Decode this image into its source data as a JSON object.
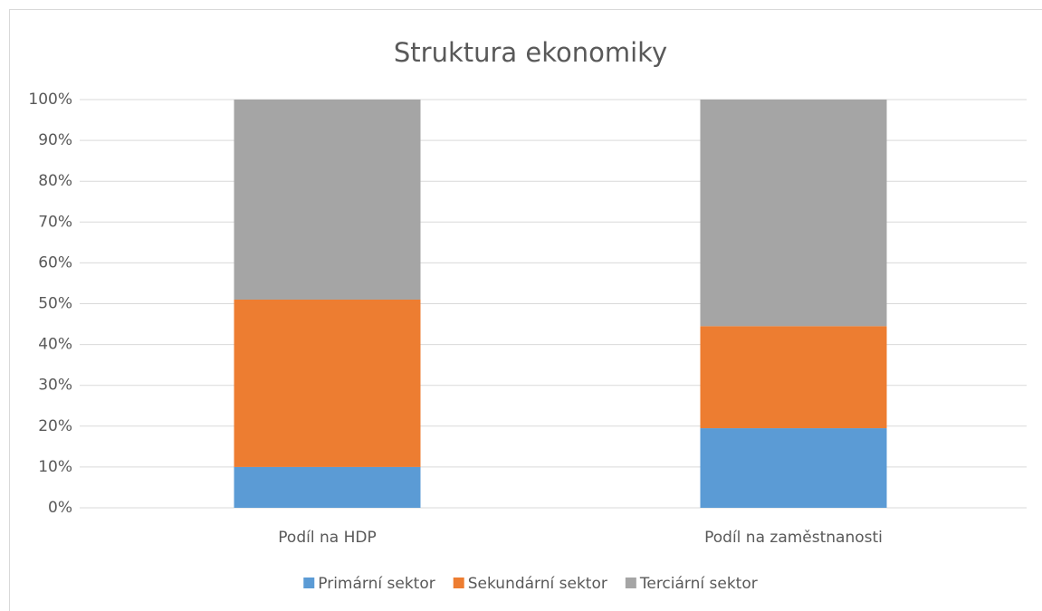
{
  "chart_data": {
    "type": "stacked_bar",
    "title": "Struktura ekonomiky",
    "categories": [
      "Podíl na HDP",
      "Podíl na zaměstnanosti"
    ],
    "series": [
      {
        "name": "Primární sektor",
        "color": "#5b9bd5",
        "values": [
          10,
          19.5
        ]
      },
      {
        "name": "Sekundární sektor",
        "color": "#ed7d31",
        "values": [
          41,
          25
        ]
      },
      {
        "name": "Terciární sektor",
        "color": "#a5a5a5",
        "values": [
          49,
          55.5
        ]
      }
    ],
    "ylim": [
      0,
      100
    ],
    "yticks": [
      {
        "value": 0,
        "label": "0%"
      },
      {
        "value": 10,
        "label": "10%"
      },
      {
        "value": 20,
        "label": "20%"
      },
      {
        "value": 30,
        "label": "30%"
      },
      {
        "value": 40,
        "label": "40%"
      },
      {
        "value": 50,
        "label": "50%"
      },
      {
        "value": 60,
        "label": "60%"
      },
      {
        "value": 70,
        "label": "70%"
      },
      {
        "value": 80,
        "label": "80%"
      },
      {
        "value": 90,
        "label": "90%"
      },
      {
        "value": 100,
        "label": "100%"
      }
    ],
    "grid": true,
    "legend": "bottom"
  }
}
